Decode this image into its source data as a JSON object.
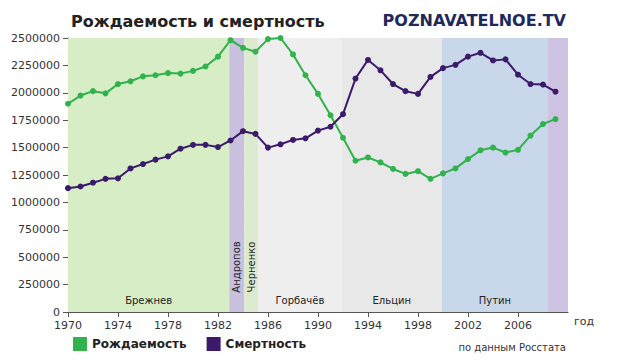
{
  "chart_data": {
    "type": "line",
    "title": "Рождаемость и смертность",
    "xlabel": "год",
    "x": [
      1970,
      1971,
      1972,
      1973,
      1974,
      1975,
      1976,
      1977,
      1978,
      1979,
      1980,
      1981,
      1982,
      1983,
      1984,
      1985,
      1986,
      1987,
      1988,
      1989,
      1990,
      1991,
      1992,
      1993,
      1994,
      1995,
      1996,
      1997,
      1998,
      1999,
      2000,
      2001,
      2002,
      2003,
      2004,
      2005,
      2006,
      2007,
      2008,
      2009
    ],
    "series": [
      {
        "name": "Рождаемость",
        "color": "#2fb34a",
        "marker": "circle",
        "values": [
          1900000,
          1975000,
          2015000,
          1995000,
          2080000,
          2105000,
          2150000,
          2160000,
          2180000,
          2175000,
          2200000,
          2240000,
          2330000,
          2480000,
          2410000,
          2375000,
          2490000,
          2500000,
          2350000,
          2160000,
          1990000,
          1795000,
          1590000,
          1380000,
          1410000,
          1365000,
          1305000,
          1260000,
          1285000,
          1215000,
          1265000,
          1310000,
          1395000,
          1475000,
          1500000,
          1455000,
          1480000,
          1610000,
          1715000,
          1760000
        ]
      },
      {
        "name": "Смертность",
        "color": "#3b1a6b",
        "marker": "circle",
        "values": [
          1130000,
          1145000,
          1180000,
          1215000,
          1220000,
          1310000,
          1350000,
          1390000,
          1420000,
          1490000,
          1525000,
          1525000,
          1505000,
          1565000,
          1650000,
          1625000,
          1500000,
          1530000,
          1570000,
          1585000,
          1655000,
          1690000,
          1805000,
          2130000,
          2300000,
          2205000,
          2080000,
          2015000,
          1990000,
          2145000,
          2225000,
          2255000,
          2330000,
          2365000,
          2295000,
          2305000,
          2165000,
          2080000,
          2075000,
          2010000
        ]
      }
    ],
    "xlim": [
      1970,
      2010
    ],
    "xticks": [
      1970,
      1974,
      1978,
      1982,
      1986,
      1990,
      1994,
      1998,
      2002,
      2006
    ],
    "ylim": [
      0,
      2500000
    ],
    "yticks": [
      0,
      250000,
      500000,
      750000,
      1000000,
      1250000,
      1500000,
      1750000,
      2000000,
      2250000,
      2500000
    ],
    "grid": true,
    "legend": "bottom-left",
    "periods": [
      {
        "name": "Брежнев",
        "start": 1970,
        "end": 1982.9,
        "color": "#d6edc6"
      },
      {
        "name": "Андропов",
        "start": 1982.9,
        "end": 1984.1,
        "color": "#c8c0de"
      },
      {
        "name": "Черненко",
        "start": 1984.1,
        "end": 1985.2,
        "color": "#dcebcf"
      },
      {
        "name": "Горбачёв",
        "start": 1985.2,
        "end": 1991.9,
        "color": "#eeeeee"
      },
      {
        "name": "Ельцин",
        "start": 1991.9,
        "end": 1999.9,
        "color": "#e8e8e8"
      },
      {
        "name": "Путин",
        "start": 1999.9,
        "end": 2008.4,
        "color": "#c9d7eb"
      },
      {
        "name": null,
        "start": 2008.4,
        "end": 2010,
        "color": "#cfc3e4"
      }
    ],
    "annotations": [
      {
        "text": "POZNAVATELNOE.TV"
      },
      {
        "text": "по данным Росстата"
      }
    ]
  }
}
